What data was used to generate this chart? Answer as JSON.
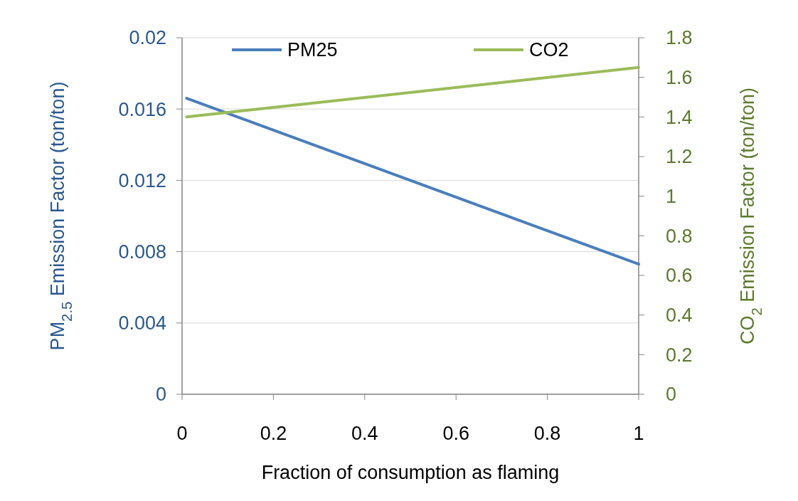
{
  "chart_data": {
    "type": "line",
    "xlabel": "Fraction of consumption as flaming",
    "ylabel": "PM$_{2.5}$ Emission Factor (ton/ton)",
    "y2label": "CO$_{2}$ Emission Factor (ton/ton)",
    "x": [
      0.01,
      1
    ],
    "series": [
      {
        "name": "PM25",
        "color": "#4a7ebb",
        "values": [
          0.0166,
          0.0073
        ]
      },
      {
        "name": "CO2",
        "color": "#9bbb59",
        "values": [
          1.4,
          1.65
        ],
        "axis": "y2"
      }
    ],
    "xlim": [
      0,
      1
    ],
    "xticks": [
      0,
      0.2,
      0.4,
      0.6,
      0.8,
      1
    ],
    "ylim": [
      0,
      0.02
    ],
    "yticks": [
      0,
      0.004,
      0.008,
      0.012,
      0.016,
      0.02
    ],
    "y2lim": [
      0,
      1.8
    ],
    "y2ticks": [
      0,
      0.2,
      0.4,
      0.6,
      0.8,
      1,
      1.2,
      1.4,
      1.6,
      1.8
    ],
    "grid": "y",
    "legend": "top",
    "marker": "none",
    "line_style": "solid"
  }
}
